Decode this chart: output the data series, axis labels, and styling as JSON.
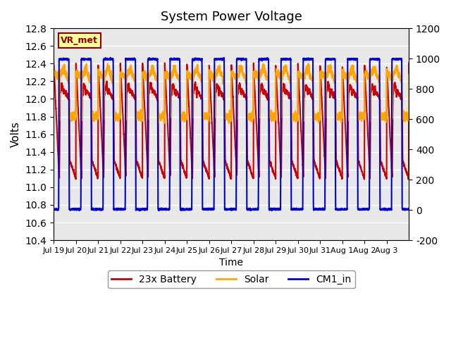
{
  "title": "System Power Voltage",
  "xlabel": "Time",
  "ylabel": "Volts",
  "left_ylim": [
    10.4,
    12.8
  ],
  "right_ylim": [
    -200,
    1200
  ],
  "left_yticks": [
    10.4,
    10.6,
    10.8,
    11.0,
    11.2,
    11.4,
    11.6,
    11.8,
    12.0,
    12.2,
    12.4,
    12.6,
    12.8
  ],
  "right_yticks": [
    -200,
    0,
    200,
    400,
    600,
    800,
    1000,
    1200
  ],
  "xtick_labels": [
    "Jul 19",
    "Jul 20",
    "Jul 21",
    "Jul 22",
    "Jul 23",
    "Jul 24",
    "Jul 25",
    "Jul 26",
    "Jul 27",
    "Jul 28",
    "Jul 29",
    "Jul 30",
    "Jul 31",
    "Aug 1",
    "Aug 2",
    "Aug 3"
  ],
  "annotation_text": "VR_met",
  "annotation_color": "#8B0000",
  "annotation_bg": "#FFFF99",
  "line_colors": {
    "battery": "#CC0000",
    "solar": "#FFA500",
    "cm1": "#0000CC"
  },
  "line_widths": {
    "battery": 1.5,
    "solar": 1.5,
    "cm1": 1.5
  },
  "legend_labels": [
    "23x Battery",
    "Solar",
    "CM1_in"
  ],
  "bg_color": "#E8E8E8",
  "grid_color": "#FFFFFF",
  "n_days": 16
}
